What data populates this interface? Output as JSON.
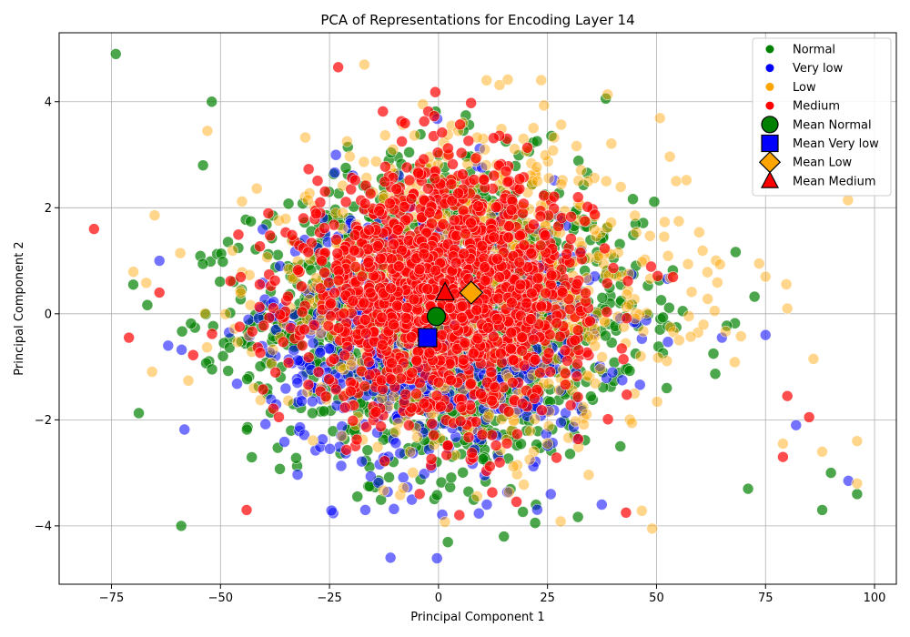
{
  "chart_data": {
    "type": "scatter",
    "title": "PCA of Representations for Encoding Layer 14",
    "xlabel": "Principal Component 1",
    "ylabel": "Principal Component 2",
    "xlim": [
      -87,
      105
    ],
    "ylim": [
      -5.1,
      5.3
    ],
    "xticks": [
      -75,
      -50,
      -25,
      0,
      25,
      50,
      75,
      100
    ],
    "yticks": [
      -4,
      -2,
      0,
      2,
      4
    ],
    "xtick_labels": [
      "−75",
      "−50",
      "−25",
      "0",
      "25",
      "50",
      "75",
      "100"
    ],
    "ytick_labels": [
      "−4",
      "−2",
      "0",
      "2",
      "4"
    ],
    "grid": true,
    "legend_position": "top-right",
    "series": [
      {
        "name": "Normal",
        "color": "#008000",
        "marker": "circle",
        "center": [
          2,
          -0.05
        ],
        "spread": [
          22,
          1.55
        ],
        "count": 1400,
        "outliers": [
          [
            -74,
            4.9
          ],
          [
            -59,
            -4.0
          ],
          [
            96,
            -3.4
          ],
          [
            71,
            -3.3
          ],
          [
            88,
            -3.7
          ],
          [
            -52,
            4.0
          ],
          [
            15,
            -4.2
          ],
          [
            -70,
            0.55
          ],
          [
            -54,
            2.8
          ],
          [
            90,
            -3.0
          ]
        ]
      },
      {
        "name": "Very low",
        "color": "#0000ff",
        "marker": "circle",
        "center": [
          -2,
          -0.45
        ],
        "spread": [
          19,
          1.45
        ],
        "count": 650,
        "outliers": [
          [
            -11,
            -4.6
          ],
          [
            -64,
            1.0
          ],
          [
            -62,
            -0.6
          ],
          [
            75,
            -0.4
          ],
          [
            82,
            -2.1
          ],
          [
            94,
            -3.15
          ],
          [
            65,
            -0.45
          ]
        ]
      },
      {
        "name": "Low",
        "color": "#ffa500",
        "marker": "circle",
        "center": [
          7,
          0.4
        ],
        "spread": [
          24,
          1.6
        ],
        "count": 900,
        "outliers": [
          [
            96,
            -3.2
          ],
          [
            88,
            -2.6
          ],
          [
            79,
            -2.45
          ],
          [
            49,
            -4.05
          ],
          [
            -17,
            4.7
          ],
          [
            96,
            -2.4
          ],
          [
            86,
            -0.85
          ],
          [
            80,
            0.1
          ],
          [
            75,
            0.7
          ],
          [
            -53,
            3.45
          ]
        ]
      },
      {
        "name": "Medium",
        "color": "#ff0000",
        "marker": "circle",
        "center": [
          1.5,
          0.4
        ],
        "spread": [
          16,
          1.25
        ],
        "count": 1500,
        "outliers": [
          [
            -79,
            1.6
          ],
          [
            -71,
            -0.45
          ],
          [
            -23,
            4.65
          ],
          [
            -44,
            -3.7
          ],
          [
            85,
            -1.95
          ],
          [
            79,
            -2.7
          ],
          [
            43,
            -3.75
          ],
          [
            80,
            -1.55
          ],
          [
            -64,
            0.4
          ]
        ]
      }
    ],
    "means": [
      {
        "name": "Mean Normal",
        "x": -0.5,
        "y": -0.05,
        "color": "#008000",
        "marker": "circle"
      },
      {
        "name": "Mean Very low",
        "x": -2.5,
        "y": -0.45,
        "color": "#0000ff",
        "marker": "square"
      },
      {
        "name": "Mean Low",
        "x": 7.5,
        "y": 0.4,
        "color": "#ffa500",
        "marker": "diamond"
      },
      {
        "name": "Mean Medium",
        "x": 1.5,
        "y": 0.4,
        "color": "#ff0000",
        "marker": "triangle"
      }
    ]
  }
}
